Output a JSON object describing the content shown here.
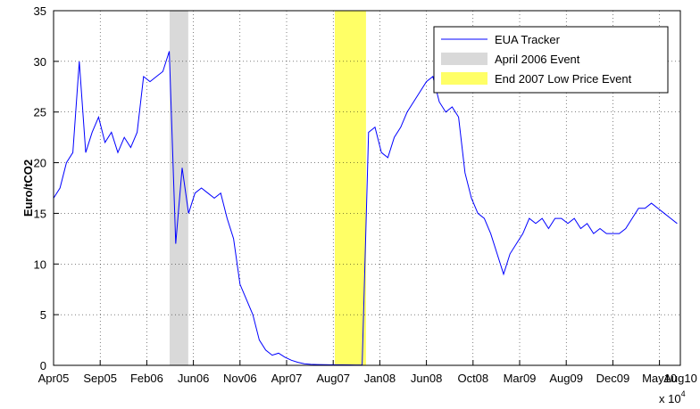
{
  "chart_data": {
    "type": "line",
    "y_label": "Euro/tCO2",
    "x_scale_label": "x 10",
    "x_scale_exponent": 4,
    "grid": true,
    "legend": "upper right",
    "xlim": [
      732400,
      734350
    ],
    "xticks": [
      {
        "value": 732400,
        "label": "Apr05"
      },
      {
        "value": 732545,
        "label": "Sep05"
      },
      {
        "value": 732690,
        "label": "Feb06"
      },
      {
        "value": 732835,
        "label": "Jun06"
      },
      {
        "value": 732980,
        "label": "Nov06"
      },
      {
        "value": 733125,
        "label": "Apr07"
      },
      {
        "value": 733270,
        "label": "Aug07"
      },
      {
        "value": 733415,
        "label": "Jan08"
      },
      {
        "value": 733560,
        "label": "Jun08"
      },
      {
        "value": 733705,
        "label": "Oct08"
      },
      {
        "value": 733850,
        "label": "Mar09"
      },
      {
        "value": 733995,
        "label": "Aug09"
      },
      {
        "value": 734140,
        "label": "Dec09"
      },
      {
        "value": 734285,
        "label": "May10"
      },
      {
        "value": 734350,
        "label": "Aug10"
      }
    ],
    "ylim": [
      0,
      35
    ],
    "yticks": [
      0,
      5,
      10,
      15,
      20,
      25,
      30,
      35
    ],
    "spans": [
      {
        "name": "April 2006 Event",
        "color": "#d9d9d9",
        "x": [
          732761,
          732819
        ]
      },
      {
        "name": "End 2007 Low Price Event",
        "color": "#ffff66",
        "x": [
          733275,
          733372
        ]
      }
    ],
    "x": [
      732400,
      732420,
      732440,
      732460,
      732480,
      732500,
      732520,
      732540,
      732560,
      732580,
      732600,
      732620,
      732640,
      732660,
      732680,
      732700,
      732720,
      732740,
      732760,
      732780,
      732800,
      732820,
      732840,
      732860,
      732880,
      732900,
      732920,
      732940,
      732960,
      732980,
      733000,
      733020,
      733040,
      733060,
      733080,
      733100,
      733120,
      733140,
      733160,
      733180,
      733200,
      733220,
      733240,
      733260,
      733280,
      733300,
      733320,
      733340,
      733360,
      733380,
      733400,
      733420,
      733440,
      733460,
      733480,
      733500,
      733520,
      733540,
      733560,
      733580,
      733600,
      733620,
      733640,
      733660,
      733680,
      733700,
      733720,
      733740,
      733760,
      733780,
      733800,
      733820,
      733840,
      733860,
      733880,
      733900,
      733920,
      733940,
      733960,
      733980,
      734000,
      734020,
      734040,
      734060,
      734080,
      734100,
      734120,
      734140,
      734160,
      734180,
      734200,
      734220,
      734240,
      734260,
      734280,
      734300,
      734320,
      734340
    ],
    "series": [
      {
        "name": "EUA Tracker",
        "color": "#0000ff",
        "values": [
          16.5,
          17.5,
          20,
          21,
          30,
          21,
          23,
          24.5,
          22,
          23,
          21,
          22.5,
          21.5,
          23,
          28.5,
          28,
          28.5,
          29,
          31,
          12,
          19.5,
          15,
          17,
          17.5,
          17,
          16.5,
          17,
          14.5,
          12.5,
          8,
          6.5,
          5,
          2.5,
          1.5,
          1,
          1.2,
          0.8,
          0.5,
          0.3,
          0.15,
          0.1,
          0.08,
          0.07,
          0.06,
          0.05,
          0.05,
          0.04,
          0.03,
          0.03,
          23,
          23.5,
          21,
          20.5,
          22.5,
          23.5,
          25,
          26,
          27,
          28,
          28.5,
          26,
          25,
          25.5,
          24.5,
          19,
          16.5,
          15,
          14.5,
          13,
          11,
          9,
          11,
          12,
          13,
          14.5,
          14,
          14.5,
          13.5,
          14.5,
          14.5,
          14,
          14.5,
          13.5,
          14,
          13,
          13.5,
          13,
          13,
          13,
          13.5,
          14.5,
          15.5,
          15.5,
          16,
          15.5,
          15,
          14.5,
          14
        ]
      }
    ]
  }
}
